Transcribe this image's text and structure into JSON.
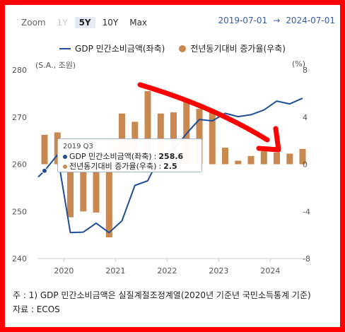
{
  "zoom": {
    "label": "Zoom",
    "buttons": [
      {
        "label": "1Y",
        "state": "disabled"
      },
      {
        "label": "5Y",
        "state": "active"
      },
      {
        "label": "10Y",
        "state": "normal"
      },
      {
        "label": "Max",
        "state": "normal"
      }
    ]
  },
  "date_range": {
    "start": "2019-07-01",
    "arrow": "→",
    "end": "2024-07-01"
  },
  "legend": {
    "line_label": "GDP 민간소비금액(좌축)",
    "bar_label": "전년동기대비 증가율(우축)"
  },
  "units": {
    "left": "(S.A., 조원)",
    "right": "(%)"
  },
  "tooltip": {
    "title": "2019 Q3",
    "line_label": "GDP 민간소비금액(좌축)",
    "line_value": "258.6",
    "bar_label": "전년동기대비 증가율(우축)",
    "bar_value": "2.5"
  },
  "footnote": {
    "line1": "주 : 1) GDP 민간소비금액은 실질계절조정계열(2020년 기준년 국민소득통계 기준)",
    "line2": "자료 : ECOS"
  },
  "colors": {
    "line": "#1f4e99",
    "bar": "#c8884f",
    "annotation_arrow": "#ff0000",
    "frame": "#ff0000"
  },
  "chart_data": {
    "type": "bar+line",
    "x": [
      "2019 Q3",
      "2019 Q4",
      "2020 Q1",
      "2020 Q2",
      "2020 Q3",
      "2020 Q4",
      "2021 Q1",
      "2021 Q2",
      "2021 Q3",
      "2021 Q4",
      "2022 Q1",
      "2022 Q2",
      "2022 Q3",
      "2022 Q4",
      "2023 Q1",
      "2023 Q2",
      "2023 Q3",
      "2023 Q4",
      "2024 Q1",
      "2024 Q2",
      "2024 Q3"
    ],
    "x_tick_labels": [
      "2020",
      "2021",
      "2022",
      "2023",
      "2024"
    ],
    "series": [
      {
        "name": "GDP 민간소비금액(좌축)",
        "type": "line",
        "axis": "left",
        "values": [
          258.6,
          262.0,
          245.5,
          245.6,
          247.5,
          245.5,
          248.0,
          255.5,
          256.5,
          262.0,
          263.0,
          266.5,
          269.5,
          269.2,
          270.8,
          270.1,
          270.5,
          271.5,
          273.4,
          272.8,
          274.0
        ]
      },
      {
        "name": "전년동기대비 증가율(우축)",
        "type": "bar",
        "axis": "right",
        "values": [
          2.5,
          2.7,
          -4.5,
          -4.0,
          -4.1,
          -6.2,
          4.3,
          3.6,
          6.2,
          4.3,
          4.4,
          5.3,
          4.7,
          4.6,
          1.4,
          0.3,
          0.7,
          1.1,
          1.0,
          0.9,
          1.3
        ]
      }
    ],
    "left_axis": {
      "ylim": [
        240,
        280
      ],
      "ticks": [
        240,
        250,
        260,
        270,
        280
      ]
    },
    "right_axis": {
      "ylim": [
        -8,
        8
      ],
      "ticks": [
        -8,
        -4,
        0,
        4,
        8
      ]
    },
    "grid": false,
    "legend_position": "top-center"
  }
}
